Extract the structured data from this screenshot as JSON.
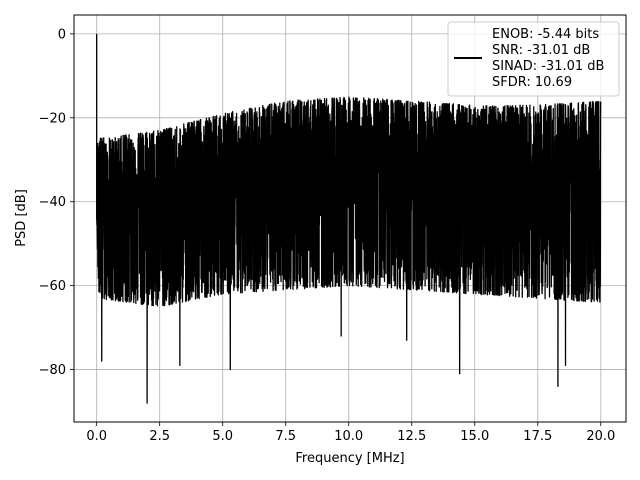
{
  "chart_data": {
    "type": "line",
    "xlabel": "Frequency [MHz]",
    "ylabel": "PSD [dB]",
    "xlim": [
      -0.9,
      21.0
    ],
    "ylim": [
      -92.5,
      4.5
    ],
    "x_ticks": [
      0.0,
      2.5,
      5.0,
      7.5,
      10.0,
      12.5,
      15.0,
      17.5,
      20.0
    ],
    "x_tick_labels": [
      "0.0",
      "2.5",
      "5.0",
      "7.5",
      "10.0",
      "12.5",
      "15.0",
      "17.5",
      "20.0"
    ],
    "y_ticks": [
      0,
      -20,
      -40,
      -60,
      -80
    ],
    "y_tick_labels": [
      "0",
      "−20",
      "−40",
      "−60",
      "−80"
    ],
    "grid": true,
    "legend_position": "top-right",
    "colors": {
      "line": "#000000",
      "grid": "#b0b0b0",
      "axes": "#000000"
    },
    "series": [
      {
        "name": "ENOB: -5.44 bits\nSNR: -31.01 dB\nSINAD: -31.01 dB\nSFDR: 10.69",
        "x_range": [
          0,
          20
        ],
        "peak": {
          "x": 0.0,
          "y": 0
        },
        "upper_envelope": [
          [
            0.0,
            -25
          ],
          [
            2.5,
            -23
          ],
          [
            5.0,
            -19
          ],
          [
            7.5,
            -16
          ],
          [
            10.0,
            -15
          ],
          [
            12.5,
            -16
          ],
          [
            15.0,
            -17
          ],
          [
            17.5,
            -17
          ],
          [
            20.0,
            -16
          ]
        ],
        "lower_envelope": [
          [
            0.0,
            -63
          ],
          [
            2.5,
            -65
          ],
          [
            5.0,
            -62
          ],
          [
            7.5,
            -61
          ],
          [
            10.0,
            -60
          ],
          [
            12.5,
            -61
          ],
          [
            15.0,
            -62
          ],
          [
            17.5,
            -63
          ],
          [
            20.0,
            -64
          ]
        ],
        "dips": [
          [
            0.2,
            -78
          ],
          [
            2.0,
            -88
          ],
          [
            3.3,
            -79
          ],
          [
            5.3,
            -80
          ],
          [
            9.7,
            -72
          ],
          [
            12.3,
            -73
          ],
          [
            14.4,
            -81
          ],
          [
            18.3,
            -84
          ],
          [
            18.6,
            -79
          ]
        ]
      }
    ]
  },
  "legend": {
    "lines": [
      "ENOB: -5.44 bits",
      "SNR: -31.01 dB",
      "SINAD: -31.01 dB",
      "SFDR: 10.69"
    ]
  }
}
